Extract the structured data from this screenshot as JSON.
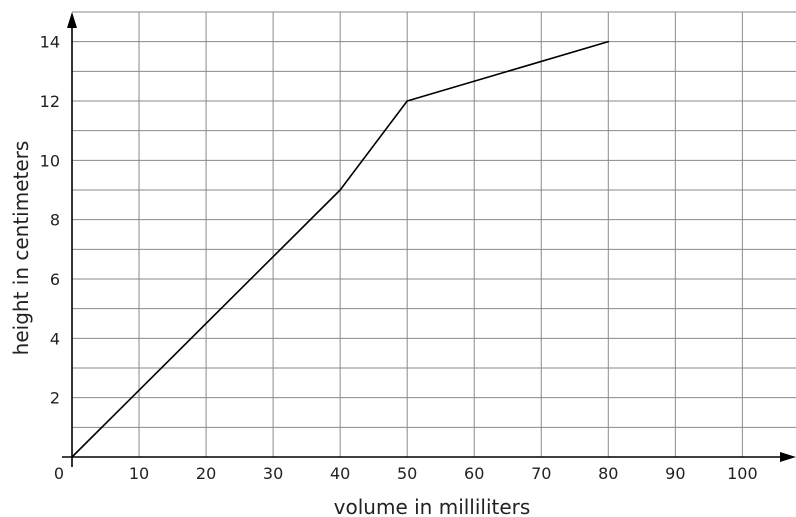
{
  "chart_data": {
    "type": "line",
    "xlabel": "volume in milliliters",
    "ylabel": "height in centimeters",
    "origin_label": "0",
    "xlim": [
      0,
      108
    ],
    "ylim": [
      0,
      15
    ],
    "x_ticks": [
      10,
      20,
      30,
      40,
      50,
      60,
      70,
      80,
      90,
      100
    ],
    "y_ticks": [
      2,
      4,
      6,
      8,
      10,
      12,
      14
    ],
    "grid": true,
    "x_grid_step": 10,
    "y_grid_step": 1,
    "series": [
      {
        "x": [
          0,
          40,
          50,
          80
        ],
        "y": [
          0,
          9,
          12,
          14
        ]
      }
    ]
  }
}
